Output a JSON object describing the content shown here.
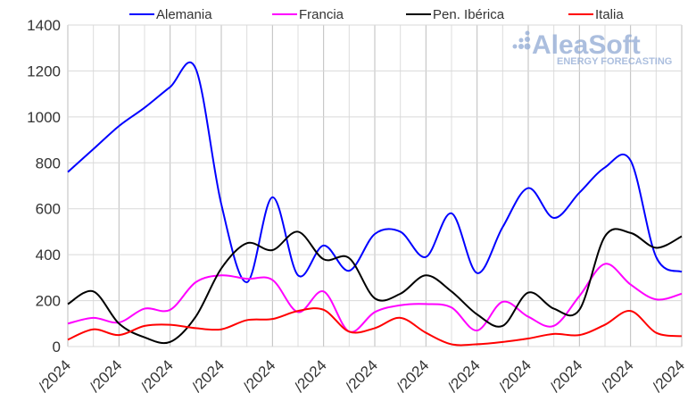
{
  "chart_data": {
    "type": "line",
    "title": "",
    "xlabel": "",
    "ylabel": "",
    "ylim": [
      0,
      1400
    ],
    "yticks": [
      0,
      200,
      400,
      600,
      800,
      1000,
      1200,
      1400
    ],
    "grid": true,
    "legend_position": "top",
    "x_tick_labels": [
      "/2024",
      "/2024",
      "/2024",
      "/2024",
      "/2024",
      "/2024",
      "/2024",
      "/2024",
      "/2024",
      "/2024",
      "/2024",
      "/2024",
      "/2024"
    ],
    "series": [
      {
        "name": "Alemania",
        "color": "#0000ff",
        "values": [
          760,
          860,
          960,
          1040,
          1130,
          1210,
          620,
          280,
          650,
          310,
          440,
          330,
          490,
          500,
          390,
          580,
          320,
          520,
          690,
          560,
          670,
          780,
          810,
          390,
          325
        ]
      },
      {
        "name": "Francia",
        "color": "#ff00ff",
        "values": [
          100,
          125,
          105,
          165,
          160,
          280,
          310,
          295,
          290,
          150,
          240,
          65,
          150,
          180,
          185,
          170,
          70,
          195,
          130,
          90,
          220,
          360,
          270,
          205,
          230
        ]
      },
      {
        "name": "Pen. Ibérica",
        "color": "#000000",
        "values": [
          185,
          240,
          100,
          40,
          20,
          130,
          340,
          450,
          420,
          500,
          380,
          385,
          210,
          230,
          310,
          240,
          140,
          90,
          235,
          165,
          160,
          480,
          495,
          430,
          480
        ]
      },
      {
        "name": "Italia",
        "color": "#ff0000",
        "values": [
          30,
          75,
          50,
          90,
          95,
          80,
          75,
          115,
          120,
          155,
          160,
          65,
          80,
          125,
          60,
          10,
          10,
          20,
          35,
          55,
          50,
          95,
          155,
          60,
          45
        ]
      }
    ]
  },
  "logo": {
    "name": "AleaSoft",
    "tagline": "ENERGY FORECASTING",
    "color": "#8fa9d4"
  }
}
